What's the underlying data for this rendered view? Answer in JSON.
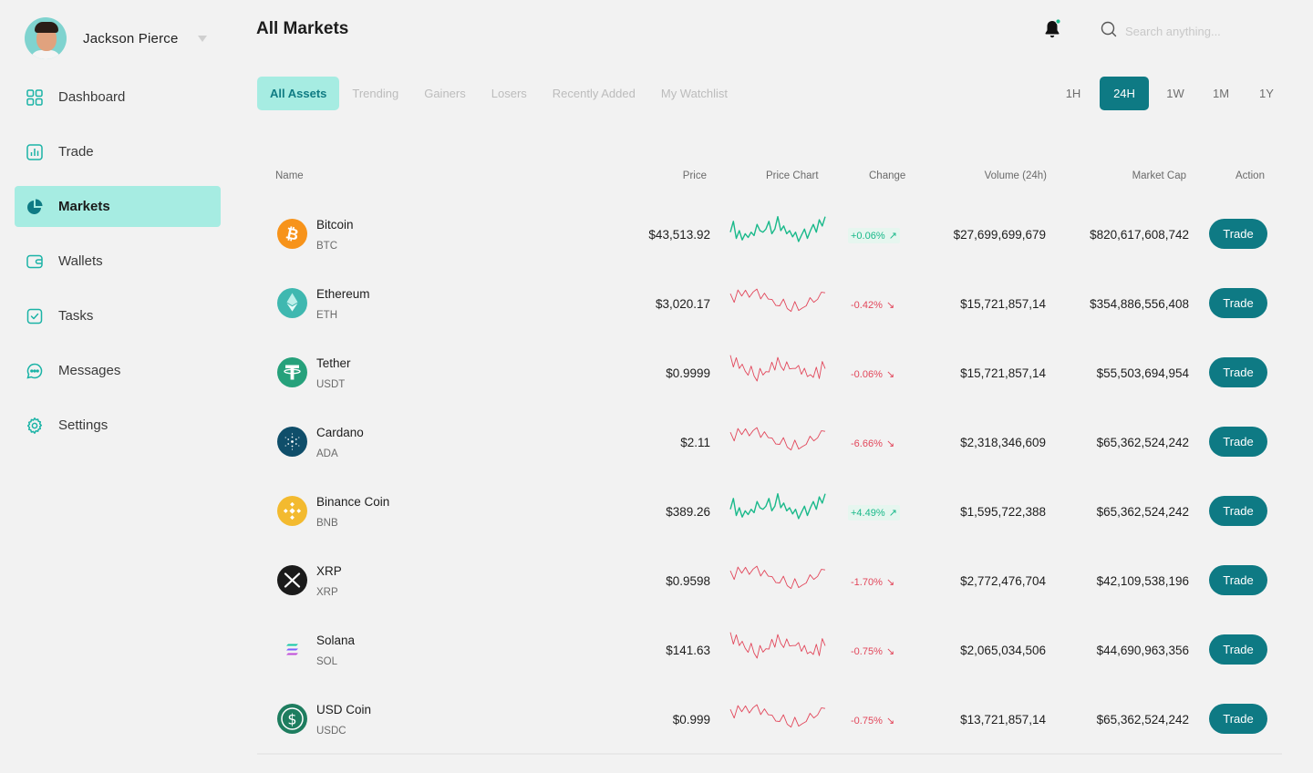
{
  "user": {
    "name": "Jackson Pierce"
  },
  "nav": [
    {
      "label": "Dashboard",
      "icon": "dashboard-icon",
      "active": false
    },
    {
      "label": "Trade",
      "icon": "chart-icon",
      "active": false
    },
    {
      "label": "Markets",
      "icon": "pie-chart-icon",
      "active": true
    },
    {
      "label": "Wallets",
      "icon": "wallet-icon",
      "active": false
    },
    {
      "label": "Tasks",
      "icon": "checkbox-icon",
      "active": false
    },
    {
      "label": "Messages",
      "icon": "message-icon",
      "active": false
    },
    {
      "label": "Settings",
      "icon": "gear-icon",
      "active": false
    }
  ],
  "header": {
    "title": "All Markets",
    "search_placeholder": "Search anything..."
  },
  "tabs": [
    "All Assets",
    "Trending",
    "Gainers",
    "Losers",
    "Recently Added",
    "My Watchlist"
  ],
  "active_tab": "All Assets",
  "ranges": [
    "1H",
    "24H",
    "1W",
    "1M",
    "1Y"
  ],
  "active_range": "24H",
  "columns": {
    "name": "Name",
    "price": "Price",
    "chart": "Price Chart",
    "change": "Change",
    "volume": "Volume (24h)",
    "mcap": "Market Cap",
    "action": "Action"
  },
  "colors": {
    "accent": "#0e7a84",
    "accent_light": "#a6ece2",
    "up": "#19b98a",
    "down": "#e2475b"
  },
  "rows": [
    {
      "name": "Bitcoin",
      "symbol": "BTC",
      "price": "$43,513.92",
      "change": "+0.06%",
      "direction": "up",
      "volume": "$27,699,699,679",
      "mcap": "$820,617,608,742",
      "action": "Trade",
      "icon": "bitcoin-icon"
    },
    {
      "name": "Ethereum",
      "symbol": "ETH",
      "price": "$3,020.17",
      "change": "-0.42%",
      "direction": "down",
      "volume": "$15,721,857,14",
      "mcap": "$354,886,556,408",
      "action": "Trade",
      "icon": "ethereum-icon"
    },
    {
      "name": "Tether",
      "symbol": "USDT",
      "price": "$0.9999",
      "change": "-0.06%",
      "direction": "down",
      "volume": "$15,721,857,14",
      "mcap": "$55,503,694,954",
      "action": "Trade",
      "icon": "tether-icon"
    },
    {
      "name": "Cardano",
      "symbol": "ADA",
      "price": "$2.11",
      "change": "-6.66%",
      "direction": "down",
      "volume": "$2,318,346,609",
      "mcap": "$65,362,524,242",
      "action": "Trade",
      "icon": "cardano-icon"
    },
    {
      "name": "Binance Coin",
      "symbol": "BNB",
      "price": "$389.26",
      "change": "+4.49%",
      "direction": "up",
      "volume": "$1,595,722,388",
      "mcap": "$65,362,524,242",
      "action": "Trade",
      "icon": "binance-icon"
    },
    {
      "name": "XRP",
      "symbol": "XRP",
      "price": "$0.9598",
      "change": "-1.70%",
      "direction": "down",
      "volume": "$2,772,476,704",
      "mcap": "$42,109,538,196",
      "action": "Trade",
      "icon": "xrp-icon"
    },
    {
      "name": "Solana",
      "symbol": "SOL",
      "price": "$141.63",
      "change": "-0.75%",
      "direction": "down",
      "volume": "$2,065,034,506",
      "mcap": "$44,690,963,356",
      "action": "Trade",
      "icon": "solana-icon"
    },
    {
      "name": "USD Coin",
      "symbol": "USDC",
      "price": "$0.999",
      "change": "-0.75%",
      "direction": "down",
      "volume": "$13,721,857,14",
      "mcap": "$65,362,524,242",
      "action": "Trade",
      "icon": "usdc-icon"
    }
  ]
}
